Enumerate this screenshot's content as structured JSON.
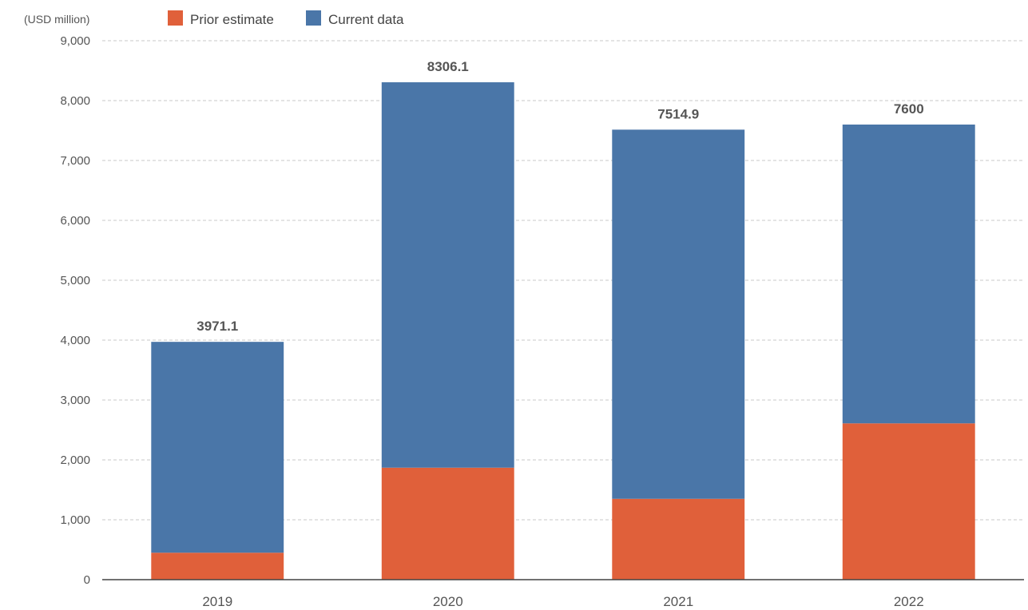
{
  "chart_data": {
    "type": "bar",
    "stacked": true,
    "unit_label": "(USD million)",
    "categories": [
      "2019",
      "2020",
      "2021",
      "2022"
    ],
    "series": [
      {
        "name": "Prior estimate",
        "color": "#E0603A",
        "values": [
          450,
          1870,
          1350,
          2610
        ]
      },
      {
        "name": "Current data",
        "color": "#4A76A8",
        "values": [
          3521.1,
          6436.1,
          6164.9,
          4990
        ]
      }
    ],
    "totals": [
      "3971.1",
      "8306.1",
      "7514.9",
      "7600"
    ],
    "yticks": [
      "0",
      "1,000",
      "2,000",
      "3,000",
      "4,000",
      "5,000",
      "6,000",
      "7,000",
      "8,000",
      "9,000"
    ],
    "ylim": [
      0,
      9000
    ],
    "grid": true,
    "legend_position": "top-left"
  }
}
